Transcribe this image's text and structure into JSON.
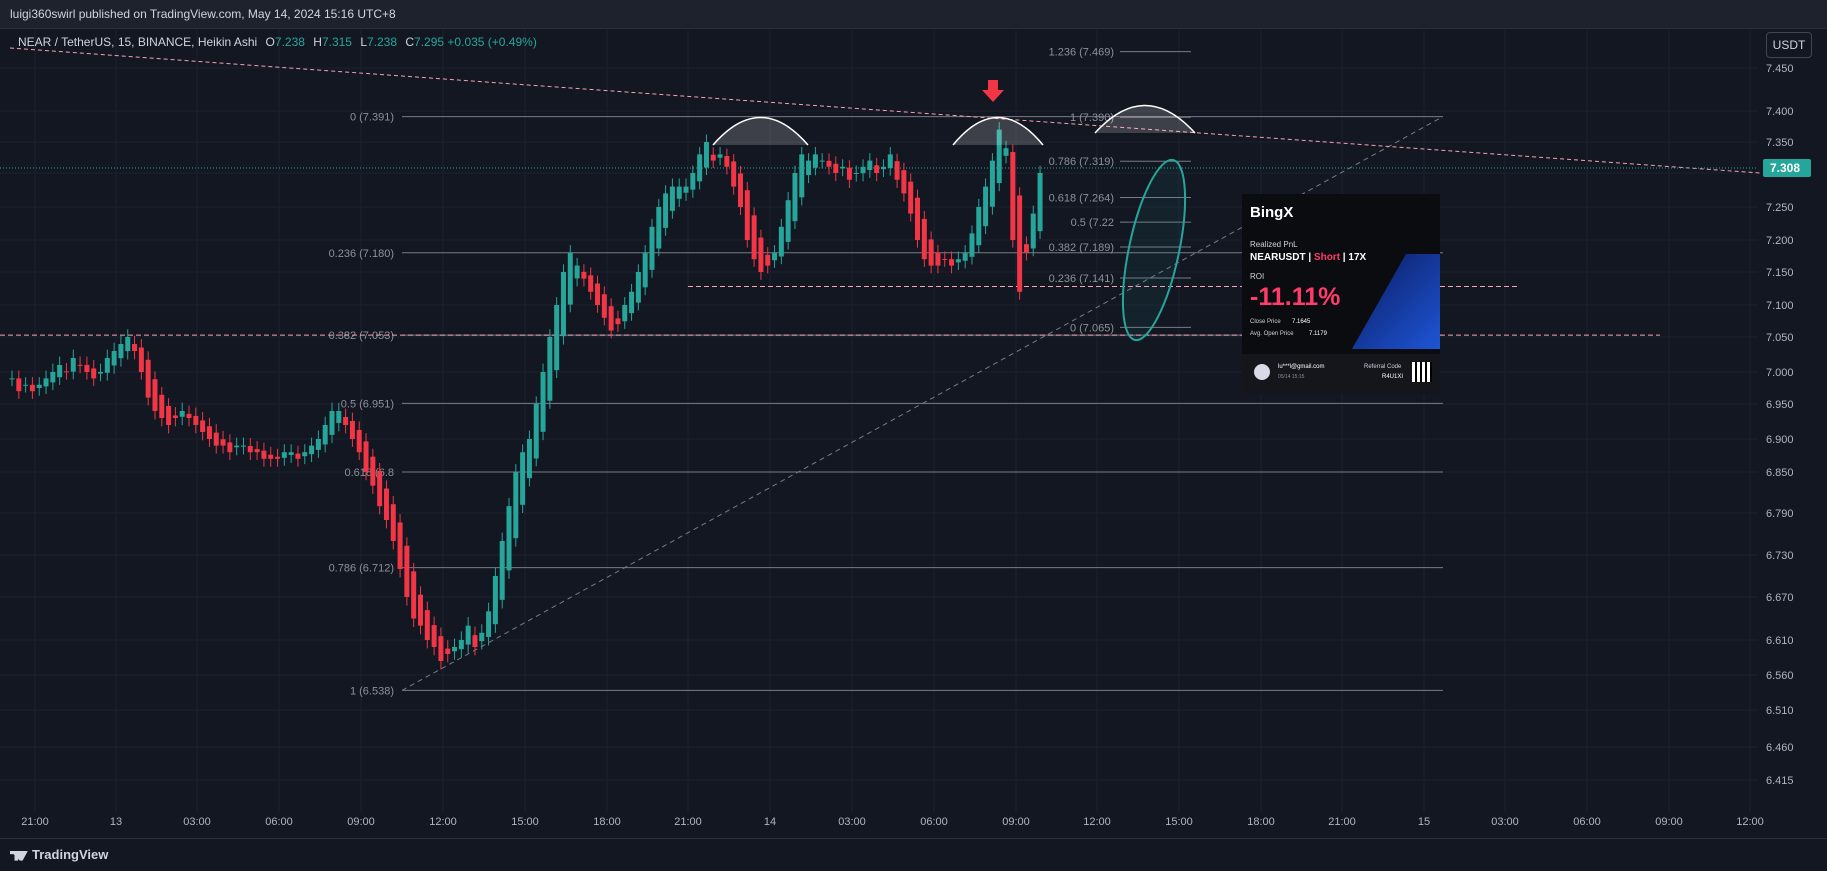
{
  "header": {
    "published": "luigi360swirl published on TradingView.com, May 14, 2024 15:16 UTC+8"
  },
  "legend": {
    "symbol": "NEAR / TetherUS, 15, BINANCE, Heikin Ashi",
    "o_label": "O",
    "o": "7.238",
    "h_label": "H",
    "h": "7.315",
    "l_label": "L",
    "l": "7.238",
    "c_label": "C",
    "c": "7.295",
    "change": "+0.035 (+0.49%)"
  },
  "currency_button": "USDT",
  "footer": {
    "brand": "TradingView"
  },
  "colors": {
    "up": "#26a69a",
    "down": "#f23645",
    "background": "#131722",
    "price_tag": "#26a69a",
    "trend_pink": "#f7a1b3"
  },
  "pnl_card": {
    "brand": "BingX",
    "realized": "Realized PnL",
    "pair": "NEARUSDT",
    "side": "Short",
    "leverage": "17X",
    "roi_label": "ROI",
    "roi": "-11.11%",
    "close_label": "Close Price",
    "close_price": "7.1645",
    "open_label": "Avg. Open Price",
    "open_price": "7.1179",
    "email": "lu***l@gmail.com",
    "date": "05/14 15:15",
    "referral_label": "Referral Code",
    "referral_code": "R4U1XI"
  },
  "chart_data": {
    "type": "candlestick",
    "style": "Heikin Ashi",
    "symbol": "NEAR / TetherUS",
    "interval": "15",
    "exchange": "BINANCE",
    "y_ticks": [
      "7.450",
      "7.400",
      "7.350",
      "7.300",
      "7.250",
      "7.200",
      "7.150",
      "7.100",
      "7.050",
      "7.000",
      "6.950",
      "6.900",
      "6.850",
      "6.790",
      "6.730",
      "6.670",
      "6.610",
      "6.560",
      "6.510",
      "6.460",
      "6.415"
    ],
    "y_scale_values": [
      7.45,
      7.4,
      7.35,
      7.3,
      7.25,
      7.2,
      7.15,
      7.1,
      7.05,
      7.0,
      6.95,
      6.9,
      6.85,
      6.79,
      6.73,
      6.67,
      6.61,
      6.56,
      6.51,
      6.46,
      6.415
    ],
    "x_ticks": [
      "21:00",
      "13",
      "03:00",
      "06:00",
      "09:00",
      "12:00",
      "15:00",
      "18:00",
      "21:00",
      "14",
      "03:00",
      "06:00",
      "09:00",
      "12:00",
      "15:00",
      "18:00",
      "21:00",
      "15",
      "03:00",
      "06:00",
      "09:00",
      "12:00"
    ],
    "last_price": "7.308",
    "candles_start": "May 12 19:45",
    "candle_interval_min": 15,
    "closes": [
      6.99,
      6.97,
      6.98,
      6.97,
      6.98,
      6.99,
      7.0,
      7.01,
      7.0,
      7.02,
      7.01,
      7.0,
      6.99,
      7.0,
      7.02,
      7.03,
      7.04,
      7.05,
      7.03,
      7.0,
      6.96,
      6.94,
      6.93,
      6.92,
      6.93,
      6.94,
      6.93,
      6.92,
      6.91,
      6.9,
      6.89,
      6.89,
      6.88,
      6.89,
      6.89,
      6.88,
      6.88,
      6.87,
      6.87,
      6.87,
      6.88,
      6.88,
      6.87,
      6.88,
      6.89,
      6.9,
      6.92,
      6.94,
      6.94,
      6.92,
      6.9,
      6.88,
      6.85,
      6.83,
      6.8,
      6.78,
      6.75,
      6.71,
      6.67,
      6.64,
      6.63,
      6.61,
      6.6,
      6.58,
      6.59,
      6.6,
      6.61,
      6.63,
      6.6,
      6.62,
      6.65,
      6.7,
      6.75,
      6.8,
      6.85,
      6.88,
      6.9,
      6.95,
      7.0,
      7.05,
      7.1,
      7.15,
      7.18,
      7.16,
      7.14,
      7.12,
      7.1,
      7.08,
      7.06,
      7.07,
      7.1,
      7.12,
      7.15,
      7.18,
      7.22,
      7.25,
      7.27,
      7.28,
      7.28,
      7.28,
      7.3,
      7.33,
      7.35,
      7.32,
      7.33,
      7.31,
      7.28,
      7.25,
      7.2,
      7.17,
      7.15,
      7.16,
      7.18,
      7.22,
      7.26,
      7.3,
      7.33,
      7.32,
      7.33,
      7.32,
      7.31,
      7.3,
      7.31,
      7.29,
      7.3,
      7.31,
      7.32,
      7.3,
      7.31,
      7.33,
      7.29,
      7.27,
      7.24,
      7.2,
      7.17,
      7.16,
      7.16,
      7.17,
      7.16,
      7.17,
      7.18,
      7.21,
      7.25,
      7.28,
      7.32,
      7.37,
      7.34,
      7.2,
      7.12,
      7.18,
      7.24,
      7.3
    ],
    "fib_retracement": [
      {
        "ratio": "0",
        "value": 7.391,
        "label": "0 (7.391)"
      },
      {
        "ratio": "0.236",
        "value": 7.18,
        "label": "0.236 (7.180)"
      },
      {
        "ratio": "0.382",
        "value": 7.053,
        "label": "0.382 (7.053)"
      },
      {
        "ratio": "0.5",
        "value": 6.951,
        "label": "0.5 (6.951)"
      },
      {
        "ratio": "0.618",
        "value": 6.85,
        "label": "0.618 (6.8"
      },
      {
        "ratio": "0.786",
        "value": 6.712,
        "label": "0.786 (6.712)"
      },
      {
        "ratio": "1",
        "value": 6.538,
        "label": "1 (6.538)"
      }
    ],
    "fib_extension": [
      {
        "value": 7.469,
        "label": "1.236 (7.469)"
      },
      {
        "value": 7.39,
        "label": "1 (7.390)"
      },
      {
        "value": 7.319,
        "label": "0.786 (7.319)"
      },
      {
        "value": 7.264,
        "label": "0.618 (7.264)"
      },
      {
        "value": 7.227,
        "label": "0.5 (7.22"
      },
      {
        "value": 7.189,
        "label": "0.382 (7.189)"
      },
      {
        "value": 7.141,
        "label": "0.236 (7.141)"
      },
      {
        "value": 7.065,
        "label": "0 (7.065)"
      }
    ],
    "horizontal_levels": [
      7.128,
      7.053
    ],
    "grid": true
  }
}
